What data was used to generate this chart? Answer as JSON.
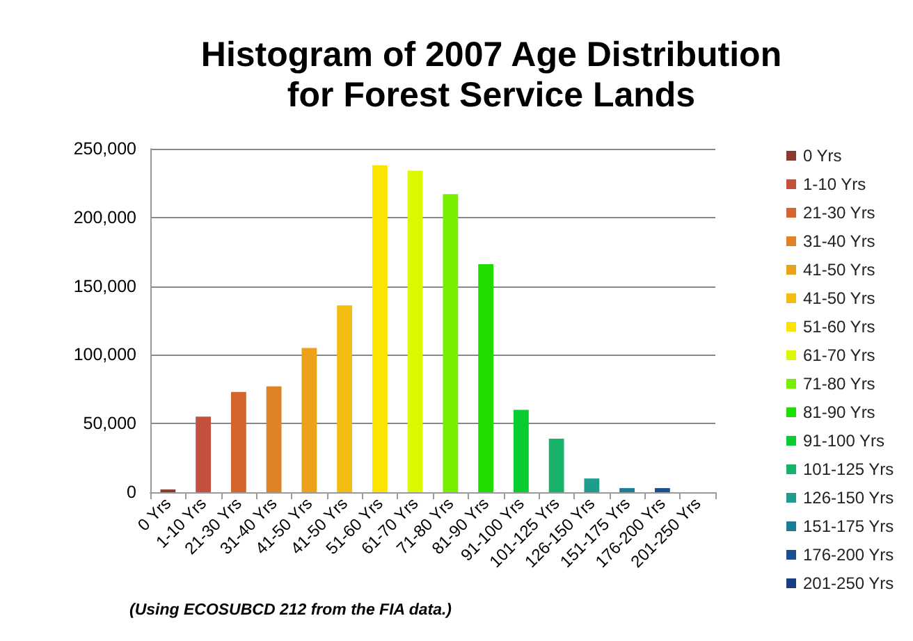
{
  "chart_data": {
    "type": "bar",
    "title": "Histogram of 2007 Age Distribution\nfor Forest Service Lands",
    "categories": [
      "0 Yrs",
      "1-10 Yrs",
      "21-30 Yrs",
      "31-40 Yrs",
      "41-50 Yrs",
      "41-50 Yrs",
      "51-60 Yrs",
      "61-70 Yrs",
      "71-80 Yrs",
      "81-90 Yrs",
      "91-100 Yrs",
      "101-125 Yrs",
      "126-150 Yrs",
      "151-175 Yrs",
      "176-200 Yrs",
      "201-250 Yrs"
    ],
    "series": [
      {
        "name": "0 Yrs",
        "color": "#8b3a2e",
        "values": [
          2000,
          null,
          null,
          null,
          null,
          null,
          null,
          null,
          null,
          null,
          null,
          null,
          null,
          null,
          null,
          null
        ]
      },
      {
        "name": "1-10 Yrs",
        "color": "#c4503f",
        "values": [
          null,
          55000,
          null,
          null,
          null,
          null,
          null,
          null,
          null,
          null,
          null,
          null,
          null,
          null,
          null,
          null
        ]
      },
      {
        "name": "21-30 Yrs",
        "color": "#d4652f",
        "values": [
          null,
          null,
          73000,
          null,
          null,
          null,
          null,
          null,
          null,
          null,
          null,
          null,
          null,
          null,
          null,
          null
        ]
      },
      {
        "name": "31-40 Yrs",
        "color": "#e08326",
        "values": [
          null,
          null,
          null,
          77000,
          null,
          null,
          null,
          null,
          null,
          null,
          null,
          null,
          null,
          null,
          null,
          null
        ]
      },
      {
        "name": "41-50 Yrs",
        "color": "#eba21a",
        "values": [
          null,
          null,
          null,
          null,
          105000,
          null,
          null,
          null,
          null,
          null,
          null,
          null,
          null,
          null,
          null,
          null
        ]
      },
      {
        "name": "41-50 Yrs",
        "color": "#f2bd10",
        "values": [
          null,
          null,
          null,
          null,
          null,
          136000,
          null,
          null,
          null,
          null,
          null,
          null,
          null,
          null,
          null,
          null
        ]
      },
      {
        "name": "51-60 Yrs",
        "color": "#fce400",
        "values": [
          null,
          null,
          null,
          null,
          null,
          null,
          238000,
          null,
          null,
          null,
          null,
          null,
          null,
          null,
          null,
          null
        ]
      },
      {
        "name": "61-70 Yrs",
        "color": "#dcf900",
        "values": [
          null,
          null,
          null,
          null,
          null,
          null,
          null,
          234000,
          null,
          null,
          null,
          null,
          null,
          null,
          null,
          null
        ]
      },
      {
        "name": "71-80 Yrs",
        "color": "#78ee00",
        "values": [
          null,
          null,
          null,
          null,
          null,
          null,
          null,
          null,
          217000,
          null,
          null,
          null,
          null,
          null,
          null,
          null
        ]
      },
      {
        "name": "81-90 Yrs",
        "color": "#20dd00",
        "values": [
          null,
          null,
          null,
          null,
          null,
          null,
          null,
          null,
          null,
          166000,
          null,
          null,
          null,
          null,
          null,
          null
        ]
      },
      {
        "name": "91-100 Yrs",
        "color": "#0acb2f",
        "values": [
          null,
          null,
          null,
          null,
          null,
          null,
          null,
          null,
          null,
          null,
          60000,
          null,
          null,
          null,
          null,
          null
        ]
      },
      {
        "name": "101-125 Yrs",
        "color": "#18b36b",
        "values": [
          null,
          null,
          null,
          null,
          null,
          null,
          null,
          null,
          null,
          null,
          null,
          39000,
          null,
          null,
          null,
          null
        ]
      },
      {
        "name": "126-150 Yrs",
        "color": "#1e9c8c",
        "values": [
          null,
          null,
          null,
          null,
          null,
          null,
          null,
          null,
          null,
          null,
          null,
          null,
          10000,
          null,
          null,
          null
        ]
      },
      {
        "name": "151-175 Yrs",
        "color": "#1c7c96",
        "values": [
          null,
          null,
          null,
          null,
          null,
          null,
          null,
          null,
          null,
          null,
          null,
          null,
          null,
          3000,
          null,
          null
        ]
      },
      {
        "name": "176-200 Yrs",
        "color": "#1a5090",
        "values": [
          null,
          null,
          null,
          null,
          null,
          null,
          null,
          null,
          null,
          null,
          null,
          null,
          null,
          null,
          3000,
          null
        ]
      },
      {
        "name": "201-250 Yrs",
        "color": "#1a3c80",
        "values": [
          null,
          null,
          null,
          null,
          null,
          null,
          null,
          null,
          null,
          null,
          null,
          null,
          null,
          null,
          null,
          0
        ]
      }
    ],
    "ylim": [
      0,
      250000
    ],
    "yticks": [
      {
        "value": 0,
        "label": "0"
      },
      {
        "value": 50000,
        "label": "50,000"
      },
      {
        "value": 100000,
        "label": "100,000"
      },
      {
        "value": 150000,
        "label": "150,000"
      },
      {
        "value": 200000,
        "label": "200,000"
      },
      {
        "value": 250000,
        "label": "250,000"
      }
    ],
    "grid": "y",
    "legend": "right",
    "annotations": [
      "(Using ECOSUBCD 212 from the FIA data.)"
    ]
  }
}
